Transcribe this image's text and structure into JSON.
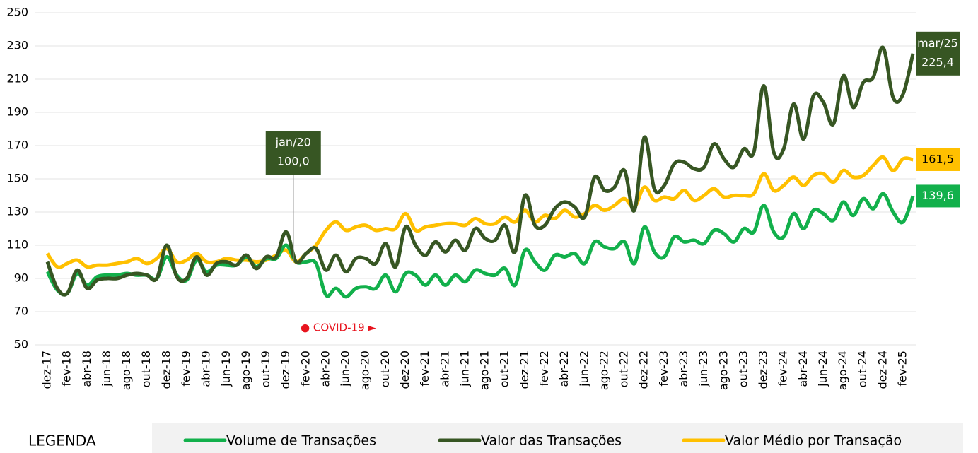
{
  "chart_data": {
    "type": "line",
    "categories": [
      "dez-17",
      null,
      "fev-18",
      null,
      "abr-18",
      null,
      "jun-18",
      null,
      "ago-18",
      null,
      "out-18",
      null,
      "dez-18",
      null,
      "fev-19",
      null,
      "abr-19",
      null,
      "jun-19",
      null,
      "ago-19",
      null,
      "out-19",
      null,
      "dez-19",
      null,
      "fev-20",
      null,
      "abr-20",
      null,
      "jun-20",
      null,
      "ago-20",
      null,
      "out-20",
      null,
      "dez-20",
      null,
      "fev-21",
      null,
      "abr-21",
      null,
      "jun-21",
      null,
      "ago-21",
      null,
      "out-21",
      null,
      "dez-21",
      null,
      "fev-22",
      null,
      "abr-22",
      null,
      "jun-22",
      null,
      "ago-22",
      null,
      "out-22",
      null,
      "dez-22",
      null,
      "fev-23",
      null,
      "abr-23",
      null,
      "jun-23",
      null,
      "ago-23",
      null,
      "out-23",
      null,
      "dez-23",
      null,
      "fev-24",
      null,
      "abr-24",
      null,
      "jun-24",
      null,
      "ago-24",
      null,
      "out-24",
      null,
      "dez-24",
      null,
      "fev-25",
      null
    ],
    "series": [
      {
        "name": "Volume de Transações",
        "color": "#12b04b",
        "values": [
          94,
          83,
          81,
          93,
          86,
          91,
          92,
          92,
          93,
          92,
          92,
          90,
          103,
          92,
          89,
          101,
          94,
          98,
          98,
          98,
          103,
          97,
          102,
          102,
          110,
          100,
          100,
          99,
          80,
          84,
          79,
          84,
          85,
          84,
          92,
          82,
          93,
          92,
          86,
          92,
          86,
          92,
          88,
          95,
          93,
          92,
          96,
          86,
          107,
          100,
          95,
          104,
          103,
          105,
          99,
          112,
          109,
          108,
          112,
          99,
          121,
          106,
          103,
          115,
          112,
          113,
          111,
          119,
          117,
          112,
          120,
          118,
          134,
          118,
          115,
          129,
          120,
          131,
          129,
          125,
          136,
          128,
          138,
          132,
          141,
          130,
          124,
          139.6
        ],
        "value_labels": {
          "87": "139,6"
        }
      },
      {
        "name": "Valor das Transações",
        "color": "#375623",
        "values": [
          100,
          84,
          81,
          95,
          84,
          89,
          90,
          90,
          92,
          93,
          92,
          90,
          110,
          91,
          90,
          103,
          92,
          99,
          100,
          98,
          104,
          96,
          103,
          103,
          118,
          100,
          105,
          108,
          95,
          104,
          94,
          102,
          102,
          99,
          111,
          97,
          121,
          110,
          104,
          112,
          106,
          113,
          107,
          120,
          114,
          113,
          122,
          106,
          140,
          122,
          122,
          132,
          136,
          133,
          127,
          151,
          143,
          145,
          155,
          131,
          175,
          144,
          146,
          159,
          160,
          156,
          157,
          171,
          162,
          157,
          168,
          166,
          206,
          166,
          168,
          195,
          174,
          200,
          196,
          183,
          212,
          193,
          208,
          211,
          229,
          199,
          201,
          225.4
        ],
        "value_labels": {
          "25": "100,0",
          "87": "225,4"
        },
        "point_labels": {
          "25": "jan/20",
          "87": "mar/25"
        }
      },
      {
        "name": "Valor Médio por Transação",
        "color": "#ffc000",
        "values": [
          105,
          97,
          99,
          101,
          97,
          98,
          98,
          99,
          100,
          102,
          99,
          102,
          108,
          100,
          101,
          105,
          100,
          100,
          102,
          101,
          101,
          100,
          101,
          104,
          107,
          100,
          105,
          110,
          119,
          124,
          119,
          121,
          122,
          119,
          120,
          120,
          129,
          119,
          121,
          122,
          123,
          123,
          122,
          126,
          123,
          123,
          127,
          124,
          131,
          124,
          128,
          126,
          131,
          127,
          129,
          134,
          131,
          134,
          138,
          133,
          145,
          137,
          139,
          138,
          143,
          137,
          140,
          144,
          139,
          140,
          140,
          141,
          153,
          143,
          146,
          151,
          146,
          152,
          153,
          148,
          155,
          151,
          152,
          158,
          163,
          155,
          162,
          161.5
        ],
        "value_labels": {
          "87": "161,5"
        }
      }
    ],
    "ylim": [
      50,
      250
    ],
    "yticks": [
      50,
      70,
      90,
      110,
      130,
      150,
      170,
      190,
      210,
      230,
      250
    ],
    "grid": true,
    "annotations": [
      {
        "text": "● COVID-19 ►",
        "color": "#e8141e"
      }
    ],
    "legend_title": "LEGENDA",
    "legend": "bottom"
  }
}
